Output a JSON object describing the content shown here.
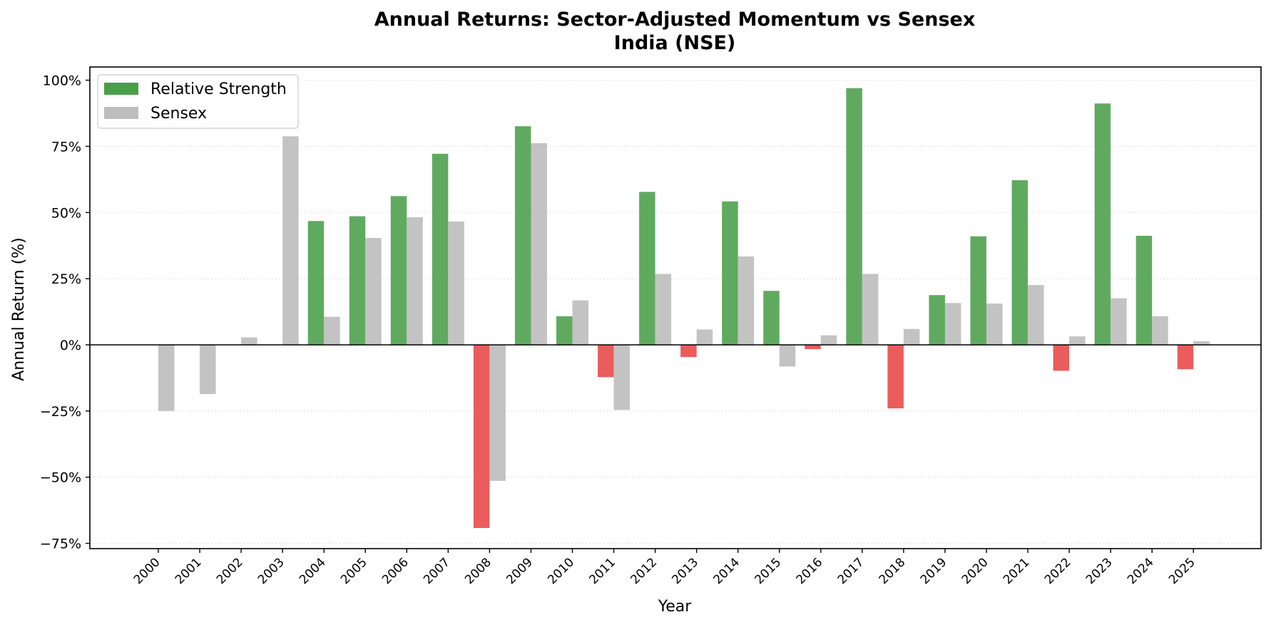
{
  "chart_data": {
    "type": "bar",
    "title": "Annual Returns: Sector-Adjusted Momentum vs Sensex",
    "subtitle": "India (NSE)",
    "xlabel": "Year",
    "ylabel": "Annual Return (%)",
    "ylim": [
      -77,
      105
    ],
    "yticks": [
      -75,
      -50,
      -25,
      0,
      25,
      50,
      75,
      100
    ],
    "ytick_labels": [
      "−75%",
      "−50%",
      "−25%",
      "0%",
      "25%",
      "50%",
      "75%",
      "100%"
    ],
    "grid": "horizontal, dotted",
    "legend_position": "top-left",
    "categories": [
      "2000",
      "2001",
      "2002",
      "2003",
      "2004",
      "2005",
      "2006",
      "2007",
      "2008",
      "2009",
      "2010",
      "2011",
      "2012",
      "2013",
      "2014",
      "2015",
      "2016",
      "2017",
      "2018",
      "2019",
      "2020",
      "2021",
      "2022",
      "2023",
      "2024",
      "2025"
    ],
    "series": [
      {
        "name": "Relative Strength",
        "color": "#4a9e4a",
        "negative_color": "#e84545",
        "values": [
          0,
          0,
          0,
          0,
          46.8,
          48.6,
          56.2,
          72.2,
          -69.2,
          82.6,
          10.8,
          -12.2,
          57.8,
          -4.6,
          54.2,
          20.4,
          -1.6,
          97.0,
          -24.0,
          18.8,
          41.0,
          62.2,
          -9.8,
          91.2,
          41.2,
          -9.2
        ]
      },
      {
        "name": "Sensex",
        "color": "#bdbdbd",
        "values": [
          -25.0,
          -18.6,
          2.8,
          78.8,
          10.6,
          40.4,
          48.2,
          46.6,
          -51.4,
          76.2,
          16.8,
          -24.6,
          26.8,
          5.8,
          33.4,
          -8.2,
          3.6,
          26.8,
          6.0,
          15.8,
          15.6,
          22.6,
          3.2,
          17.6,
          10.8,
          1.4
        ]
      }
    ]
  }
}
